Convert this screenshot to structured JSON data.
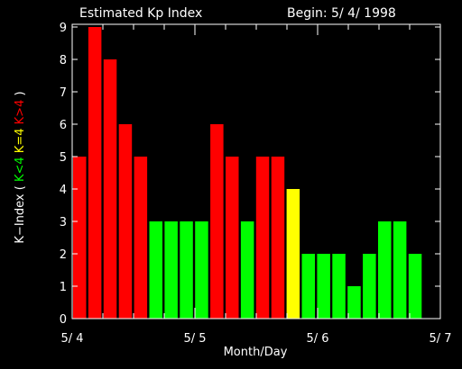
{
  "chart_data": {
    "type": "bar",
    "title": "Estimated Kp Index",
    "begin_label": "Begin: 5/ 4/ 1998",
    "xlabel": "Month/Day",
    "ylabel": {
      "prefix": "K−Index ( ",
      "legend": [
        {
          "text": "K<4",
          "color": "#00ff00"
        },
        {
          "text": "K=4",
          "color": "#ffff00"
        },
        {
          "text": "K>4",
          "color": "#ff0000"
        }
      ],
      "suffix": " )"
    },
    "ylim": [
      0,
      9
    ],
    "yticks": [
      "0",
      "1",
      "2",
      "3",
      "4",
      "5",
      "6",
      "7",
      "8",
      "9"
    ],
    "xlim": [
      0,
      24
    ],
    "xticks": [
      {
        "value": 0,
        "label": "5/ 4"
      },
      {
        "value": 8,
        "label": "5/ 5"
      },
      {
        "value": 16,
        "label": "5/ 6"
      },
      {
        "value": 24,
        "label": "5/ 7"
      }
    ],
    "interval_hours": 3,
    "values": [
      5,
      9,
      8,
      6,
      5,
      3,
      3,
      3,
      3,
      6,
      5,
      3,
      5,
      5,
      4,
      2,
      2,
      2,
      1,
      2,
      3,
      3,
      2
    ],
    "colors": {
      "low": "#00ff00",
      "equal": "#ffff00",
      "high": "#ff0000"
    },
    "threshold": 4,
    "grid": false
  }
}
